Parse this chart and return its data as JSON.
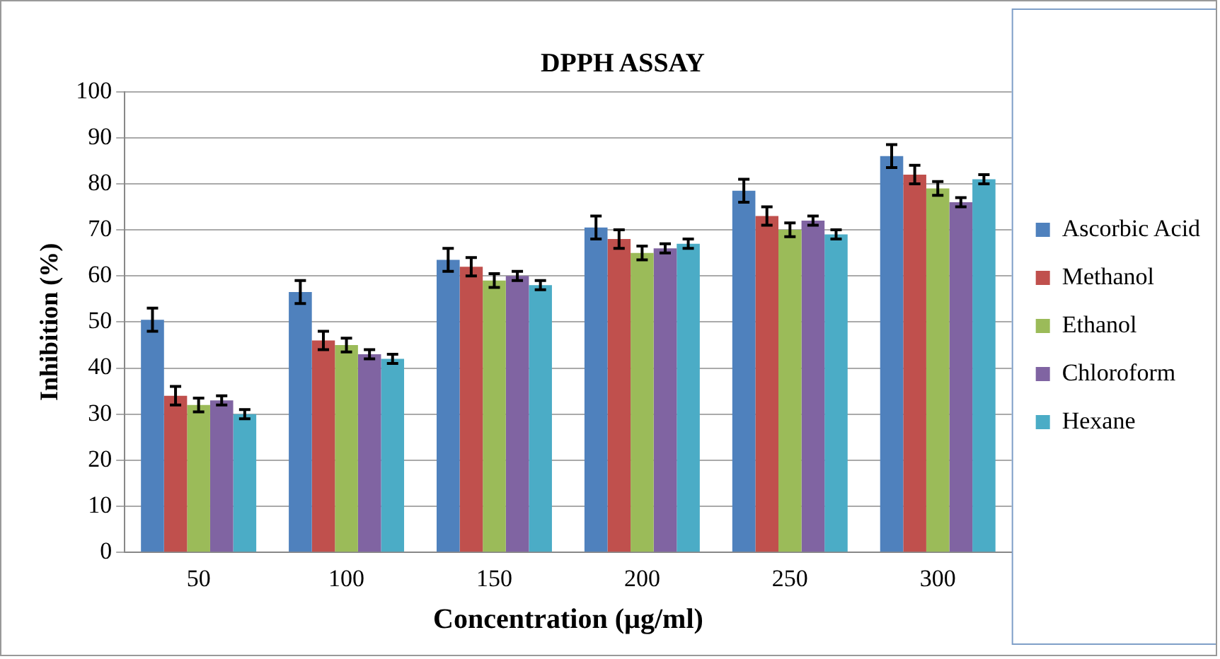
{
  "chart_data": {
    "type": "bar",
    "title": "DPPH ASSAY",
    "xlabel": "Concentration (µg/ml)",
    "ylabel": "Inhibition (%)",
    "categories": [
      "50",
      "100",
      "150",
      "200",
      "250",
      "300"
    ],
    "series": [
      {
        "name": "Ascorbic Acid",
        "color": "#4f81bd",
        "values": [
          50.5,
          56.5,
          63.5,
          70.5,
          78.5,
          86
        ],
        "errors": [
          2.5,
          2.5,
          2.5,
          2.5,
          2.5,
          2.5
        ]
      },
      {
        "name": "Methanol",
        "color": "#c0504d",
        "values": [
          34,
          46,
          62,
          68,
          73,
          82
        ],
        "errors": [
          2,
          2,
          2,
          2,
          2,
          2
        ]
      },
      {
        "name": "Ethanol",
        "color": "#9bbb59",
        "values": [
          32,
          45,
          59,
          65,
          70,
          79
        ],
        "errors": [
          1.5,
          1.5,
          1.5,
          1.5,
          1.5,
          1.5
        ]
      },
      {
        "name": "Chloroform",
        "color": "#8064a2",
        "values": [
          33,
          43,
          60,
          66,
          72,
          76
        ],
        "errors": [
          1,
          1,
          1,
          1,
          1,
          1
        ]
      },
      {
        "name": "Hexane",
        "color": "#4bacc6",
        "values": [
          30,
          42,
          58,
          67,
          69,
          81
        ],
        "errors": [
          1,
          1,
          1,
          1,
          1,
          1
        ]
      }
    ],
    "ylim": [
      0,
      100
    ],
    "yticks": [
      0,
      10,
      20,
      30,
      40,
      50,
      60,
      70,
      80,
      90,
      100
    ],
    "grid": "y",
    "legend": "right"
  }
}
